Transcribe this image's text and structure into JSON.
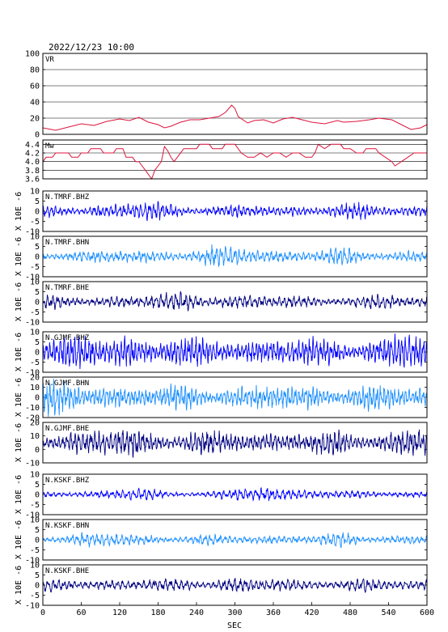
{
  "figure": {
    "title": "2022/12/23 10:00",
    "x_unit": "SEC",
    "y_unit": "X 10E -6",
    "colors": {
      "vr": "#dc143c",
      "mw": "#dc143c",
      "bhz": "#0000ff",
      "bhn": "#1e90ff",
      "bhe": "#000080",
      "frame": "#000000",
      "grid": "#000000"
    }
  },
  "chart_data": [
    {
      "type": "line",
      "label": "VR",
      "xlim": [
        0,
        600
      ],
      "ylim": [
        0,
        100
      ],
      "yticks": [
        "100",
        "80",
        "60",
        "40",
        "20",
        "0"
      ],
      "grid": true,
      "color": "vr",
      "series_points": [
        [
          0,
          8
        ],
        [
          20,
          5
        ],
        [
          40,
          9
        ],
        [
          60,
          13
        ],
        [
          80,
          11
        ],
        [
          100,
          16
        ],
        [
          120,
          19
        ],
        [
          135,
          17
        ],
        [
          150,
          21
        ],
        [
          165,
          15
        ],
        [
          180,
          12
        ],
        [
          190,
          8
        ],
        [
          200,
          10
        ],
        [
          215,
          15
        ],
        [
          230,
          18
        ],
        [
          245,
          18
        ],
        [
          260,
          20
        ],
        [
          275,
          22
        ],
        [
          285,
          27
        ],
        [
          295,
          36
        ],
        [
          300,
          32
        ],
        [
          305,
          22
        ],
        [
          320,
          14
        ],
        [
          330,
          17
        ],
        [
          345,
          18
        ],
        [
          360,
          14
        ],
        [
          375,
          19
        ],
        [
          390,
          21
        ],
        [
          405,
          18
        ],
        [
          420,
          15
        ],
        [
          440,
          13
        ],
        [
          460,
          17
        ],
        [
          470,
          15
        ],
        [
          490,
          16
        ],
        [
          510,
          18
        ],
        [
          525,
          20
        ],
        [
          545,
          18
        ],
        [
          560,
          12
        ],
        [
          575,
          6
        ],
        [
          590,
          8
        ],
        [
          600,
          12
        ]
      ]
    },
    {
      "type": "line",
      "label": "Mw",
      "xlim": [
        0,
        600
      ],
      "ylim": [
        3.6,
        4.5
      ],
      "yticks": [
        "4.4",
        "4.2",
        "4.0",
        "3.8",
        "3.6"
      ],
      "grid": true,
      "color": "mw",
      "series_points": [
        [
          0,
          4.0
        ],
        [
          5,
          4.1
        ],
        [
          15,
          4.1
        ],
        [
          20,
          4.2
        ],
        [
          40,
          4.2
        ],
        [
          45,
          4.1
        ],
        [
          55,
          4.1
        ],
        [
          60,
          4.2
        ],
        [
          70,
          4.2
        ],
        [
          75,
          4.3
        ],
        [
          90,
          4.3
        ],
        [
          95,
          4.2
        ],
        [
          110,
          4.2
        ],
        [
          115,
          4.3
        ],
        [
          125,
          4.3
        ],
        [
          130,
          4.1
        ],
        [
          140,
          4.1
        ],
        [
          145,
          4.0
        ],
        [
          150,
          4.0
        ],
        [
          155,
          3.9
        ],
        [
          160,
          3.8
        ],
        [
          165,
          3.7
        ],
        [
          170,
          3.6
        ],
        [
          175,
          3.8
        ],
        [
          180,
          3.9
        ],
        [
          185,
          4.0
        ],
        [
          190,
          4.35
        ],
        [
          195,
          4.25
        ],
        [
          200,
          4.1
        ],
        [
          205,
          4.0
        ],
        [
          210,
          4.1
        ],
        [
          220,
          4.3
        ],
        [
          230,
          4.3
        ],
        [
          240,
          4.3
        ],
        [
          245,
          4.4
        ],
        [
          260,
          4.4
        ],
        [
          265,
          4.3
        ],
        [
          280,
          4.3
        ],
        [
          285,
          4.4
        ],
        [
          300,
          4.4
        ],
        [
          310,
          4.2
        ],
        [
          320,
          4.1
        ],
        [
          330,
          4.1
        ],
        [
          340,
          4.2
        ],
        [
          350,
          4.1
        ],
        [
          360,
          4.2
        ],
        [
          370,
          4.2
        ],
        [
          380,
          4.1
        ],
        [
          390,
          4.2
        ],
        [
          400,
          4.2
        ],
        [
          410,
          4.1
        ],
        [
          420,
          4.1
        ],
        [
          425,
          4.2
        ],
        [
          430,
          4.4
        ],
        [
          440,
          4.3
        ],
        [
          450,
          4.4
        ],
        [
          465,
          4.4
        ],
        [
          470,
          4.3
        ],
        [
          480,
          4.3
        ],
        [
          490,
          4.2
        ],
        [
          500,
          4.2
        ],
        [
          505,
          4.3
        ],
        [
          520,
          4.3
        ],
        [
          525,
          4.2
        ],
        [
          535,
          4.1
        ],
        [
          545,
          4.0
        ],
        [
          550,
          3.9
        ],
        [
          560,
          4.0
        ],
        [
          570,
          4.1
        ],
        [
          580,
          4.2
        ],
        [
          590,
          4.2
        ],
        [
          600,
          4.2
        ]
      ]
    },
    {
      "type": "line",
      "label": "N.TMRF.BHZ",
      "xlim": [
        0,
        600
      ],
      "ylim": [
        -10,
        10
      ],
      "yticks": [
        "10",
        "5",
        "0",
        "-5",
        "-10"
      ],
      "color": "bhz",
      "amplitude": 2.8,
      "freq_hz": 0.15,
      "seed": 11,
      "bursts": [
        [
          165,
          50,
          1.5
        ],
        [
          470,
          30,
          1.3
        ]
      ]
    },
    {
      "type": "line",
      "label": "N.TMRF.BHN",
      "xlim": [
        0,
        600
      ],
      "ylim": [
        -10,
        10
      ],
      "yticks": [
        "10",
        "5",
        "0",
        "-5",
        "-10"
      ],
      "color": "bhn",
      "amplitude": 2.8,
      "freq_hz": 0.14,
      "seed": 23,
      "bursts": [
        [
          290,
          60,
          1.6
        ],
        [
          470,
          30,
          1.3
        ]
      ]
    },
    {
      "type": "line",
      "label": "N.TMRF.BHE",
      "xlim": [
        0,
        600
      ],
      "ylim": [
        -10,
        10
      ],
      "yticks": [
        "10",
        "5",
        "0",
        "-5",
        "-10"
      ],
      "color": "bhe",
      "amplitude": 2.8,
      "freq_hz": 0.13,
      "seed": 37,
      "bursts": [
        [
          230,
          70,
          1.5
        ],
        [
          550,
          30,
          1.3
        ]
      ]
    },
    {
      "type": "line",
      "label": "N.GJMF.BHZ",
      "xlim": [
        0,
        600
      ],
      "ylim": [
        -12,
        12
      ],
      "yticks": [
        "10",
        "5",
        "0",
        "-5",
        "-10"
      ],
      "color": "bhz",
      "amplitude": 7.5,
      "freq_hz": 0.18,
      "seed": 41,
      "bursts": [
        [
          120,
          60,
          1.3
        ],
        [
          580,
          30,
          1.4
        ]
      ]
    },
    {
      "type": "line",
      "label": "N.GJMF.BHN",
      "xlim": [
        0,
        600
      ],
      "ylim": [
        -22,
        22
      ],
      "yticks": [
        "20",
        "10",
        "0",
        "-10",
        "-20"
      ],
      "color": "bhn",
      "amplitude": 12,
      "freq_hz": 0.18,
      "seed": 53,
      "bursts": [
        [
          20,
          40,
          1.4
        ]
      ]
    },
    {
      "type": "line",
      "label": "N.GJMF.BHE",
      "xlim": [
        0,
        600
      ],
      "ylim": [
        -14,
        14
      ],
      "yticks": [
        "20",
        "10",
        "0",
        "-10"
      ],
      "color": "bhe",
      "amplitude": 7.0,
      "freq_hz": 0.16,
      "seed": 67,
      "bursts": [
        [
          130,
          40,
          1.4
        ],
        [
          590,
          30,
          1.4
        ]
      ]
    },
    {
      "type": "line",
      "label": "N.KSKF.BHZ",
      "xlim": [
        0,
        600
      ],
      "ylim": [
        -10,
        10
      ],
      "yticks": [
        "10",
        "5",
        "0",
        "-5",
        "-10"
      ],
      "color": "bhz",
      "amplitude": 1.6,
      "freq_hz": 0.12,
      "seed": 71,
      "bursts": [
        [
          340,
          40,
          2.6
        ],
        [
          410,
          30,
          2.2
        ],
        [
          140,
          40,
          1.8
        ]
      ]
    },
    {
      "type": "line",
      "label": "N.KSKF.BHN",
      "xlim": [
        0,
        600
      ],
      "ylim": [
        -10,
        10
      ],
      "yticks": [
        "10",
        "5",
        "0",
        "-5",
        "-10"
      ],
      "color": "bhn",
      "amplitude": 2.2,
      "freq_hz": 0.13,
      "seed": 83,
      "bursts": [
        [
          90,
          50,
          1.6
        ],
        [
          470,
          30,
          1.4
        ]
      ]
    },
    {
      "type": "line",
      "label": "N.KSKF.BHE",
      "xlim": [
        0,
        600
      ],
      "ylim": [
        -10,
        10
      ],
      "yticks": [
        "10",
        "5",
        "0",
        "-5",
        "-10"
      ],
      "color": "bhe",
      "amplitude": 2.6,
      "freq_hz": 0.12,
      "seed": 97,
      "bursts": [
        [
          300,
          80,
          1.3
        ]
      ]
    }
  ],
  "x_axis": {
    "ticks": [
      "0",
      "60",
      "120",
      "180",
      "240",
      "300",
      "360",
      "420",
      "480",
      "540",
      "600"
    ]
  }
}
